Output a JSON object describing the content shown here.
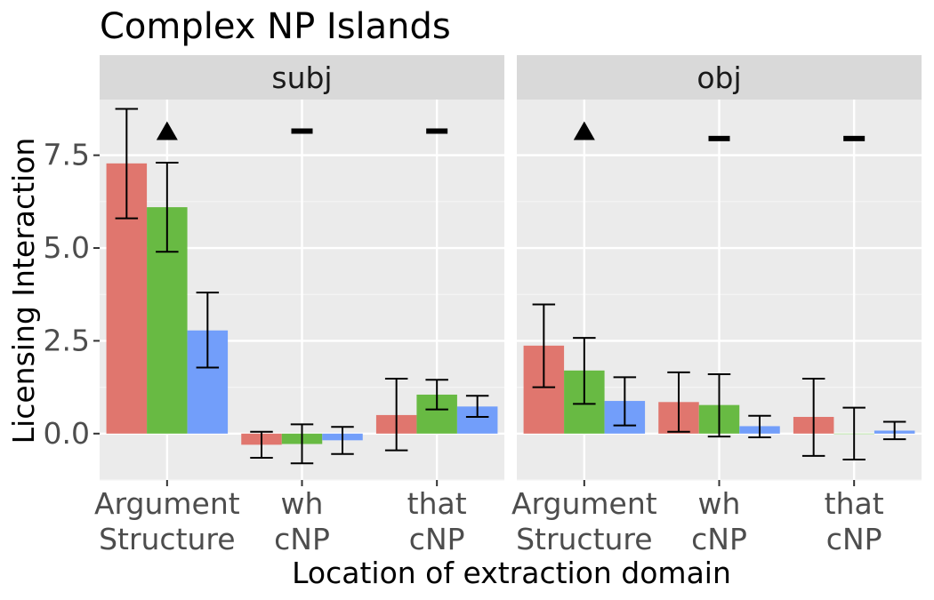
{
  "chart_data": {
    "type": "bar",
    "title": "Complex NP Islands",
    "xlabel": "Location of extraction domain",
    "ylabel": "Licensing Interaction",
    "ylim": [
      -1.25,
      9.0
    ],
    "yticks": [
      0.0,
      2.5,
      5.0,
      7.5
    ],
    "ytick_labels": [
      "0.0",
      "2.5",
      "5.0",
      "7.5"
    ],
    "categories": [
      "Argument\nStructure",
      "wh\ncNP",
      "that\ncNP"
    ],
    "grid": true,
    "legend": "none",
    "series_colors": [
      "#E0766E",
      "#68BA43",
      "#729EFA"
    ],
    "panels": [
      {
        "label": "subj",
        "series": [
          {
            "values": [
              7.28,
              -0.3,
              0.5
            ],
            "error_low": [
              5.8,
              -0.65,
              -0.45
            ],
            "error_high": [
              8.75,
              0.05,
              1.48
            ]
          },
          {
            "values": [
              6.1,
              -0.28,
              1.05
            ],
            "error_low": [
              4.9,
              -0.8,
              0.65
            ],
            "error_high": [
              7.3,
              0.25,
              1.45
            ]
          },
          {
            "values": [
              2.78,
              -0.18,
              0.73
            ],
            "error_low": [
              1.78,
              -0.55,
              0.45
            ],
            "error_high": [
              3.8,
              0.18,
              1.02
            ]
          }
        ],
        "markers": [
          {
            "category": 0,
            "shape": "triangle",
            "y": 8.15
          },
          {
            "category": 1,
            "shape": "dash",
            "y": 8.15
          },
          {
            "category": 2,
            "shape": "dash",
            "y": 8.15
          }
        ]
      },
      {
        "label": "obj",
        "series": [
          {
            "values": [
              2.37,
              0.85,
              0.45
            ],
            "error_low": [
              1.25,
              0.05,
              -0.6
            ],
            "error_high": [
              3.48,
              1.65,
              1.48
            ]
          },
          {
            "values": [
              1.7,
              0.77,
              0.0
            ],
            "error_low": [
              0.8,
              -0.08,
              -0.7
            ],
            "error_high": [
              2.58,
              1.6,
              0.7
            ]
          },
          {
            "values": [
              0.88,
              0.2,
              0.08
            ],
            "error_low": [
              0.22,
              -0.1,
              -0.15
            ],
            "error_high": [
              1.52,
              0.48,
              0.32
            ]
          }
        ],
        "markers": [
          {
            "category": 0,
            "shape": "triangle",
            "y": 8.15
          },
          {
            "category": 1,
            "shape": "dash",
            "y": 7.95
          },
          {
            "category": 2,
            "shape": "dash",
            "y": 7.95
          }
        ]
      }
    ]
  }
}
